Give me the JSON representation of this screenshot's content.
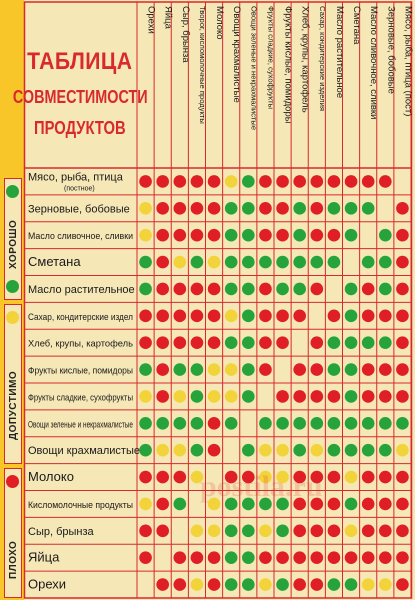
{
  "title": {
    "line1": "ТАБЛИЦА",
    "line2": "СОВМЕСТИМОСТИ",
    "line3": "ПРОДУКТОВ"
  },
  "columns": [
    "Орехи",
    "Яйца",
    "Сыр, брынза",
    "Творог, кисломолочные продукты",
    "Молоко",
    "Овощи крахмалистые",
    "Овощи зеленые и некрахмалистые",
    "Фрукты сладкие, сухофрукты",
    "Фрукты кислые, помидоры",
    "Хлеб, крупы, картофель",
    "Сахар, кондитерские изделия",
    "Масло растительное",
    "Сметана",
    "Масло сливочное, сливки",
    "Зерновые, бобовые",
    "Мясо, рыба, птица (пост)"
  ],
  "rows": [
    {
      "label": "Мясо, рыба, птица",
      "sub": "(постное)"
    },
    {
      "label": "Зерновые, бобовые"
    },
    {
      "label": "Масло сливочное, сливки"
    },
    {
      "label": "Сметана"
    },
    {
      "label": "Масло растительное"
    },
    {
      "label": "Сахар, кондитерские издел"
    },
    {
      "label": "Хлеб, крупы, картофель"
    },
    {
      "label": "Фрукты кислые, помидоры"
    },
    {
      "label": "Фрукты сладкие, сухофрукты"
    },
    {
      "label": "Овощи зеленые и некрахмалистые"
    },
    {
      "label": "Овощи крахмалистые"
    },
    {
      "label": "Молоко"
    },
    {
      "label": "Кисломолочные продукты"
    },
    {
      "label": "Сыр, брынза"
    },
    {
      "label": "Яйца"
    },
    {
      "label": "Орехи"
    }
  ],
  "matrix": [
    [
      "r",
      "r",
      "r",
      "r",
      "r",
      "y",
      "g",
      "r",
      "r",
      "r",
      "r",
      "r",
      "r",
      "r",
      "r",
      "x"
    ],
    [
      "y",
      "r",
      "r",
      "r",
      "r",
      "g",
      "g",
      "r",
      "r",
      "g",
      "r",
      "g",
      "g",
      "g",
      "x",
      "r"
    ],
    [
      "y",
      "r",
      "r",
      "r",
      "r",
      "g",
      "g",
      "r",
      "r",
      "g",
      "r",
      "r",
      "g",
      "x",
      "g",
      "r"
    ],
    [
      "g",
      "r",
      "y",
      "g",
      "y",
      "g",
      "g",
      "g",
      "g",
      "g",
      "g",
      "g",
      "x",
      "g",
      "g",
      "r"
    ],
    [
      "g",
      "r",
      "r",
      "r",
      "r",
      "g",
      "g",
      "r",
      "g",
      "g",
      "r",
      "x",
      "g",
      "r",
      "g",
      "r"
    ],
    [
      "r",
      "r",
      "r",
      "r",
      "r",
      "y",
      "g",
      "r",
      "r",
      "r",
      "x",
      "r",
      "g",
      "r",
      "r",
      "r"
    ],
    [
      "r",
      "r",
      "r",
      "r",
      "r",
      "g",
      "g",
      "r",
      "r",
      "x",
      "r",
      "g",
      "g",
      "g",
      "g",
      "r"
    ],
    [
      "g",
      "r",
      "g",
      "g",
      "y",
      "y",
      "g",
      "r",
      "x",
      "r",
      "r",
      "g",
      "g",
      "r",
      "r",
      "r"
    ],
    [
      "y",
      "r",
      "y",
      "g",
      "y",
      "y",
      "g",
      "x",
      "r",
      "r",
      "r",
      "r",
      "g",
      "r",
      "r",
      "r"
    ],
    [
      "g",
      "g",
      "g",
      "g",
      "r",
      "g",
      "x",
      "g",
      "g",
      "g",
      "g",
      "g",
      "g",
      "g",
      "g",
      "g"
    ],
    [
      "g",
      "y",
      "y",
      "g",
      "r",
      "x",
      "g",
      "y",
      "y",
      "g",
      "y",
      "g",
      "g",
      "g",
      "g",
      "y"
    ],
    [
      "r",
      "r",
      "r",
      "y",
      "x",
      "r",
      "r",
      "y",
      "y",
      "r",
      "r",
      "r",
      "y",
      "r",
      "r",
      "r"
    ],
    [
      "y",
      "r",
      "g",
      "x",
      "y",
      "g",
      "g",
      "g",
      "g",
      "r",
      "r",
      "r",
      "g",
      "r",
      "r",
      "r"
    ],
    [
      "r",
      "r",
      "x",
      "y",
      "y",
      "g",
      "g",
      "y",
      "g",
      "r",
      "r",
      "r",
      "y",
      "r",
      "r",
      "r"
    ],
    [
      "r",
      "x",
      "r",
      "r",
      "r",
      "g",
      "g",
      "r",
      "r",
      "r",
      "r",
      "r",
      "r",
      "r",
      "r",
      "r"
    ],
    [
      "x",
      "r",
      "r",
      "y",
      "r",
      "g",
      "g",
      "y",
      "g",
      "r",
      "r",
      "g",
      "g",
      "y",
      "y",
      "r"
    ]
  ],
  "legend": [
    {
      "label": "ХОРОШО",
      "color": "#27a33c"
    },
    {
      "label": "ДОПУСТИМО",
      "color": "#f3d33a"
    },
    {
      "label": "ПЛОХО",
      "color": "#e01e25"
    }
  ],
  "watermark": "postila.ru",
  "colors": {
    "red": "#e01e25",
    "green": "#27a33c",
    "yellow": "#f3d33a",
    "line": "#d8292d",
    "bg": "#f6e7b6",
    "frame": "#f8c629"
  }
}
